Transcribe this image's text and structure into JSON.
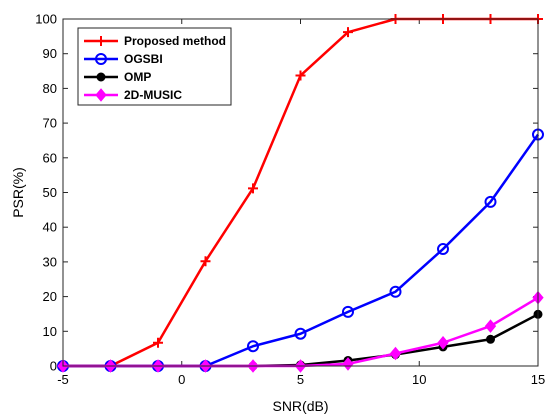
{
  "chart_data": {
    "type": "line",
    "xlabel": "SNR(dB)",
    "ylabel": "PSR(%)",
    "xlim": [
      -5,
      15
    ],
    "ylim": [
      0,
      100
    ],
    "xticks": [
      -5,
      0,
      5,
      10,
      15
    ],
    "yticks": [
      0,
      10,
      20,
      30,
      40,
      50,
      60,
      70,
      80,
      90,
      100
    ],
    "grid": false,
    "legend_position": "top-left",
    "x": [
      -5,
      -3,
      -1,
      1,
      3,
      5,
      7,
      9,
      11,
      13,
      15
    ],
    "series": [
      {
        "name": "Proposed method",
        "color": "#ff0000",
        "marker": "plus",
        "values": [
          0,
          0,
          6.7,
          30.2,
          51.2,
          83.7,
          96.2,
          100,
          100,
          100,
          100
        ]
      },
      {
        "name": "OGSBI",
        "color": "#0000ff",
        "marker": "circle",
        "values": [
          0,
          0,
          0,
          0,
          5.7,
          9.3,
          15.6,
          21.4,
          33.7,
          47.3,
          66.7
        ]
      },
      {
        "name": "OMP",
        "color": "#000000",
        "marker": "dot",
        "values": [
          0,
          0,
          0,
          0,
          0,
          0.3,
          1.6,
          3.3,
          5.5,
          7.7,
          14.9
        ]
      },
      {
        "name": "2D-MUSIC",
        "color": "#ff00ff",
        "marker": "diamond",
        "values": [
          0,
          0,
          0,
          0,
          0,
          0,
          0.6,
          3.6,
          6.7,
          11.5,
          19.7
        ]
      }
    ]
  }
}
